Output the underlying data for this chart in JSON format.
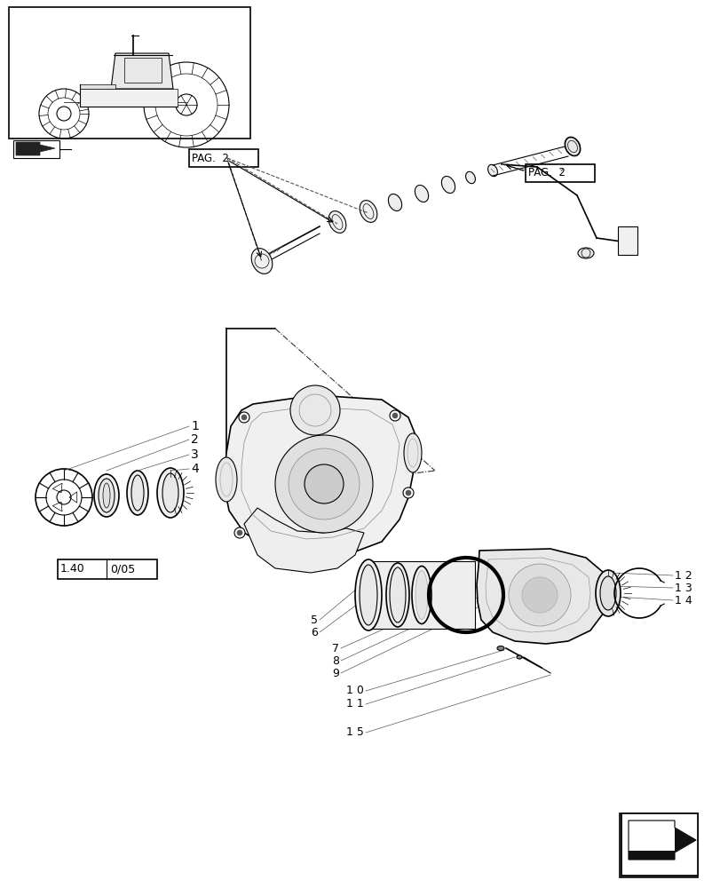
{
  "bg_color": "#ffffff",
  "line_color": "#000000",
  "page_width": 8.12,
  "page_height": 10.0,
  "dpi": 100
}
